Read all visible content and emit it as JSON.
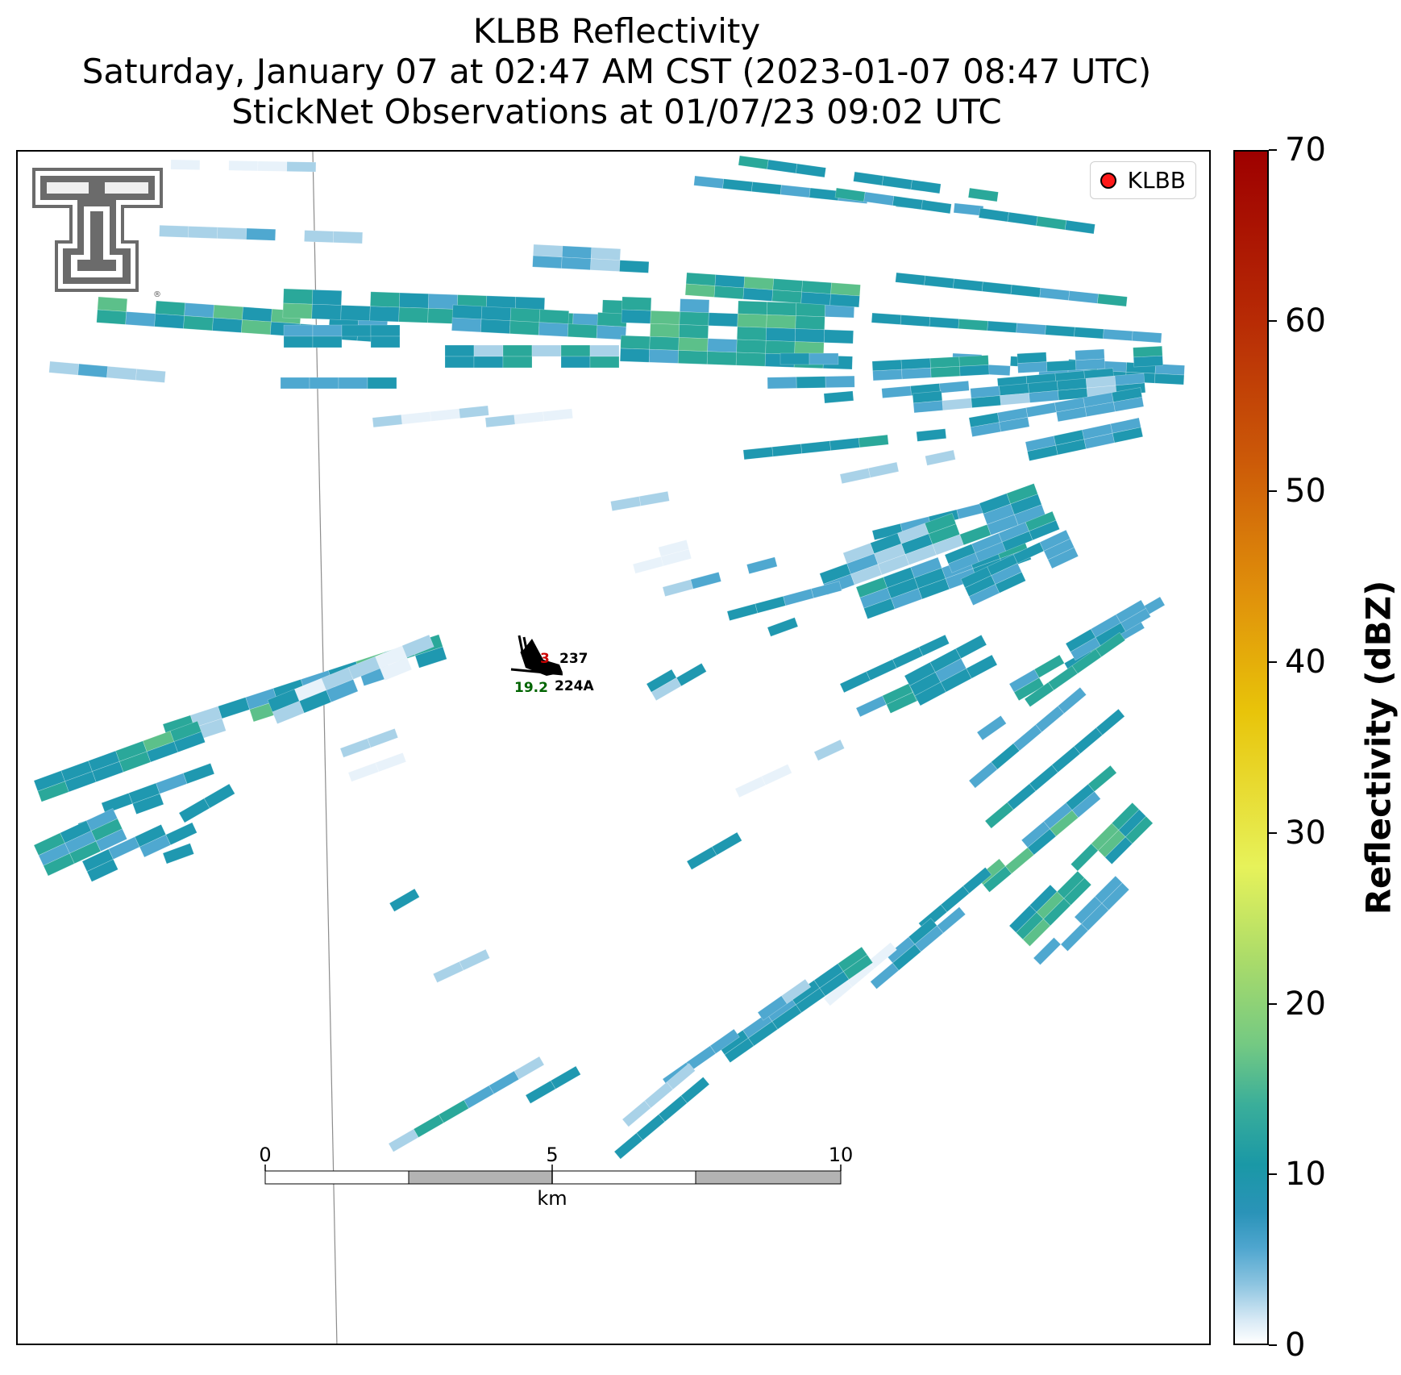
{
  "title_lines": [
    "KLBB Reflectivity",
    "Saturday, January 07 at 02:47 AM CST (2023-01-07 08:47 UTC)",
    "StickNet Observations at 01/07/23 09:02 UTC"
  ],
  "legend": {
    "label": "KLBB",
    "marker_color": "#ff1a1a"
  },
  "colorbar": {
    "label": "Reflectivity (dBZ)",
    "ticks": [
      "0",
      "10",
      "20",
      "30",
      "40",
      "50",
      "60",
      "70"
    ],
    "range": [
      0,
      70
    ]
  },
  "scale_bar": {
    "unit": "km",
    "ticks": [
      "0",
      "5",
      "10"
    ]
  },
  "stations": {
    "s1": {
      "id": "237",
      "temp": "3",
      "temp_color": "#cc0000"
    },
    "s2": {
      "id": "224A",
      "dewpoint": "19.2",
      "dewpoint_color": "#006400"
    }
  },
  "logo": {
    "name": "Texas Tech Double T",
    "mark": "®"
  },
  "colors": {
    "dbz_0_2": "#e8f2fa",
    "dbz_3_5": "#a9d2e8",
    "dbz_6_8": "#4fa8d0",
    "dbz_9_11": "#1f98b0",
    "dbz_12_14": "#2aa89a",
    "dbz_15_18": "#5cc08a",
    "dbz_19_22": "#86d47c"
  }
}
